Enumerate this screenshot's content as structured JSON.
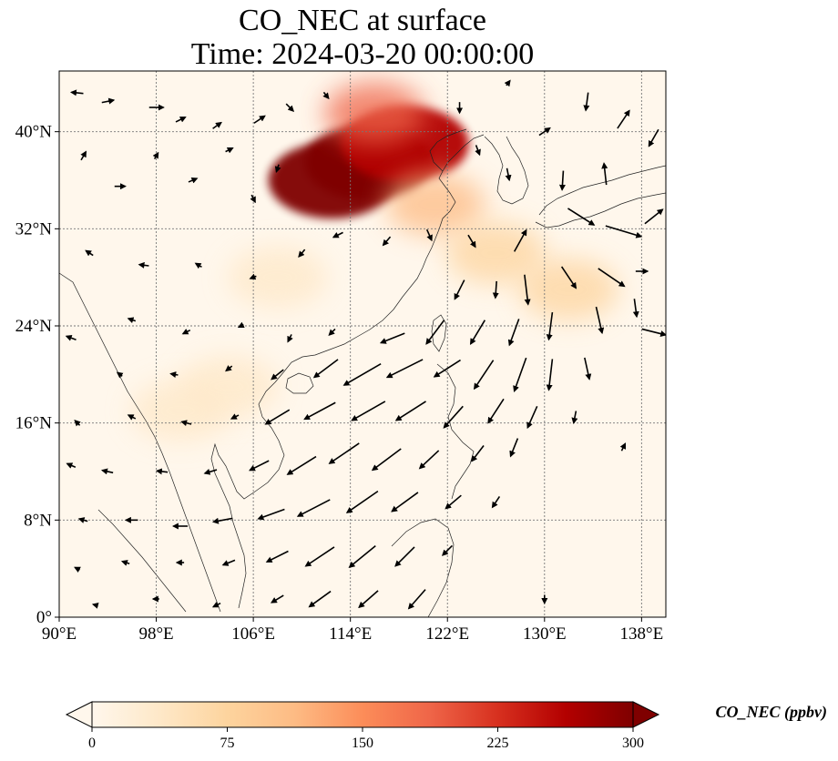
{
  "title": {
    "line1": "CO_NEC at surface",
    "line2": "Time: 2024-03-20 00:00:00"
  },
  "map": {
    "projection": "PlateCarree",
    "lon_range": [
      90,
      140
    ],
    "lat_range": [
      0,
      45
    ],
    "lon_ticks": [
      {
        "value": 90,
        "label": "90°E"
      },
      {
        "value": 98,
        "label": "98°E"
      },
      {
        "value": 106,
        "label": "106°E"
      },
      {
        "value": 114,
        "label": "114°E"
      },
      {
        "value": 122,
        "label": "122°E"
      },
      {
        "value": 130,
        "label": "130°E"
      },
      {
        "value": 138,
        "label": "138°E"
      }
    ],
    "lat_ticks": [
      {
        "value": 0,
        "label": "0°"
      },
      {
        "value": 8,
        "label": "8°N"
      },
      {
        "value": 16,
        "label": "16°N"
      },
      {
        "value": 24,
        "label": "24°N"
      },
      {
        "value": 32,
        "label": "32°N"
      },
      {
        "value": 40,
        "label": "40°N"
      }
    ],
    "gridlines": true,
    "field": "CO_NEC",
    "background_value": 12,
    "plumes": [
      {
        "lon": 115.5,
        "lat": 37.5,
        "value": 300,
        "note": "North China Plain"
      },
      {
        "lon": 112.5,
        "lat": 36.0,
        "value": 290
      },
      {
        "lon": 118.5,
        "lat": 39.0,
        "value": 280
      },
      {
        "lon": 116.0,
        "lat": 41.5,
        "value": 200
      },
      {
        "lon": 121.0,
        "lat": 34.0,
        "value": 110
      },
      {
        "lon": 126.0,
        "lat": 30.0,
        "value": 90
      },
      {
        "lon": 132.0,
        "lat": 27.0,
        "value": 80
      },
      {
        "lon": 104.0,
        "lat": 19.0,
        "value": 55
      },
      {
        "lon": 100.0,
        "lat": 17.0,
        "value": 50
      },
      {
        "lon": 108.0,
        "lat": 28.0,
        "value": 35
      }
    ]
  },
  "colorbar": {
    "label": "CO_NEC (ppbv)",
    "vmin": 0,
    "vmax": 300,
    "ticks": [
      {
        "value": 0,
        "label": "0"
      },
      {
        "value": 75,
        "label": "75"
      },
      {
        "value": 150,
        "label": "150"
      },
      {
        "value": 225,
        "label": "225"
      },
      {
        "value": 300,
        "label": "300"
      }
    ],
    "extend": "both",
    "colormap": "OrRd",
    "colors": [
      "#fff7ec",
      "#fee8c8",
      "#fdd49e",
      "#fdbb84",
      "#fc8d59",
      "#ef6548",
      "#d7301f",
      "#b30000",
      "#7f0000"
    ]
  },
  "wind_vectors": [
    {
      "lon": 91.5,
      "lat": 43.2,
      "u": -1.0,
      "v": 0.1
    },
    {
      "lon": 94.0,
      "lat": 42.5,
      "u": 1.0,
      "v": 0.2
    },
    {
      "lon": 98.0,
      "lat": 42.0,
      "u": 1.2,
      "v": 0.0
    },
    {
      "lon": 100.0,
      "lat": 41.0,
      "u": 0.8,
      "v": 0.4
    },
    {
      "lon": 103.0,
      "lat": 40.5,
      "u": 0.7,
      "v": 0.5
    },
    {
      "lon": 106.5,
      "lat": 41.0,
      "u": 0.9,
      "v": 0.6
    },
    {
      "lon": 109.0,
      "lat": 42.0,
      "u": 0.6,
      "v": -0.6
    },
    {
      "lon": 112.0,
      "lat": 43.0,
      "u": 0.4,
      "v": -0.5
    },
    {
      "lon": 92.0,
      "lat": 38.0,
      "u": 0.4,
      "v": 0.7
    },
    {
      "lon": 95.0,
      "lat": 35.5,
      "u": 0.9,
      "v": 0.0
    },
    {
      "lon": 98.0,
      "lat": 38.0,
      "u": 0.3,
      "v": 0.5
    },
    {
      "lon": 101.0,
      "lat": 36.0,
      "u": 0.7,
      "v": 0.3
    },
    {
      "lon": 104.0,
      "lat": 38.5,
      "u": 0.6,
      "v": 0.3
    },
    {
      "lon": 106.0,
      "lat": 34.5,
      "u": 0.3,
      "v": -0.6
    },
    {
      "lon": 108.0,
      "lat": 37.0,
      "u": -0.2,
      "v": -0.6
    },
    {
      "lon": 123.0,
      "lat": 42.0,
      "u": 0.0,
      "v": -0.9
    },
    {
      "lon": 127.0,
      "lat": 44.0,
      "u": 0.3,
      "v": 0.4
    },
    {
      "lon": 130.0,
      "lat": 40.0,
      "u": 0.9,
      "v": 0.6
    },
    {
      "lon": 133.5,
      "lat": 42.5,
      "u": -0.2,
      "v": -1.5
    },
    {
      "lon": 136.5,
      "lat": 41.0,
      "u": 1.0,
      "v": 1.5
    },
    {
      "lon": 139.0,
      "lat": 39.5,
      "u": -0.8,
      "v": -1.4
    },
    {
      "lon": 135.0,
      "lat": 36.5,
      "u": -0.2,
      "v": 1.8
    },
    {
      "lon": 131.5,
      "lat": 36.0,
      "u": -0.1,
      "v": -1.6
    },
    {
      "lon": 127.0,
      "lat": 36.5,
      "u": 0.2,
      "v": -1.0
    },
    {
      "lon": 124.5,
      "lat": 38.5,
      "u": 0.3,
      "v": -0.8
    },
    {
      "lon": 133.0,
      "lat": 33.0,
      "u": 2.2,
      "v": -1.4
    },
    {
      "lon": 136.5,
      "lat": 31.8,
      "u": 3.0,
      "v": -0.9
    },
    {
      "lon": 139.0,
      "lat": 33.0,
      "u": 1.5,
      "v": 1.2
    },
    {
      "lon": 128.0,
      "lat": 31.0,
      "u": 1.0,
      "v": 1.8
    },
    {
      "lon": 124.0,
      "lat": 31.0,
      "u": 0.6,
      "v": -1.0
    },
    {
      "lon": 120.5,
      "lat": 31.5,
      "u": 0.4,
      "v": -0.9
    },
    {
      "lon": 117.0,
      "lat": 31.0,
      "u": -0.6,
      "v": -0.7
    },
    {
      "lon": 113.0,
      "lat": 31.5,
      "u": -0.8,
      "v": -0.4
    },
    {
      "lon": 110.0,
      "lat": 30.0,
      "u": -0.5,
      "v": -0.6
    },
    {
      "lon": 106.0,
      "lat": 28.0,
      "u": -0.5,
      "v": -0.2
    },
    {
      "lon": 101.5,
      "lat": 29.0,
      "u": -0.5,
      "v": 0.3
    },
    {
      "lon": 97.0,
      "lat": 29.0,
      "u": -0.8,
      "v": 0.1
    },
    {
      "lon": 92.5,
      "lat": 30.0,
      "u": -0.6,
      "v": 0.4
    },
    {
      "lon": 135.5,
      "lat": 28.0,
      "u": 2.2,
      "v": -1.5
    },
    {
      "lon": 138.0,
      "lat": 28.5,
      "u": 1.0,
      "v": 0.0
    },
    {
      "lon": 132.0,
      "lat": 28.0,
      "u": 1.2,
      "v": -1.8
    },
    {
      "lon": 128.5,
      "lat": 27.0,
      "u": 0.3,
      "v": -2.5
    },
    {
      "lon": 126.0,
      "lat": 27.0,
      "u": -0.1,
      "v": -1.4
    },
    {
      "lon": 123.0,
      "lat": 27.0,
      "u": -0.8,
      "v": -1.6
    },
    {
      "lon": 137.5,
      "lat": 25.5,
      "u": 0.2,
      "v": -1.5
    },
    {
      "lon": 139.0,
      "lat": 23.5,
      "u": 2.0,
      "v": -0.5
    },
    {
      "lon": 134.5,
      "lat": 24.5,
      "u": 0.5,
      "v": -2.2
    },
    {
      "lon": 130.5,
      "lat": 24.0,
      "u": -0.3,
      "v": -2.3
    },
    {
      "lon": 127.5,
      "lat": 23.5,
      "u": -0.8,
      "v": -2.2
    },
    {
      "lon": 124.5,
      "lat": 23.5,
      "u": -1.2,
      "v": -2.0
    },
    {
      "lon": 121.0,
      "lat": 23.5,
      "u": -1.5,
      "v": -2.0
    },
    {
      "lon": 117.5,
      "lat": 23.0,
      "u": -2.0,
      "v": -0.8
    },
    {
      "lon": 112.5,
      "lat": 23.5,
      "u": -0.5,
      "v": -0.5
    },
    {
      "lon": 109.0,
      "lat": 23.0,
      "u": -0.3,
      "v": -0.6
    },
    {
      "lon": 105.0,
      "lat": 24.0,
      "u": -0.4,
      "v": -0.2
    },
    {
      "lon": 100.5,
      "lat": 23.5,
      "u": -0.6,
      "v": -0.3
    },
    {
      "lon": 96.0,
      "lat": 24.5,
      "u": -0.6,
      "v": 0.2
    },
    {
      "lon": 91.0,
      "lat": 23.0,
      "u": -0.8,
      "v": 0.3
    },
    {
      "lon": 133.5,
      "lat": 20.5,
      "u": 0.4,
      "v": -1.8
    },
    {
      "lon": 130.5,
      "lat": 20.0,
      "u": -0.3,
      "v": -2.6
    },
    {
      "lon": 128.0,
      "lat": 20.0,
      "u": -1.0,
      "v": -2.8
    },
    {
      "lon": 125.0,
      "lat": 20.0,
      "u": -1.6,
      "v": -2.4
    },
    {
      "lon": 122.0,
      "lat": 20.5,
      "u": -2.2,
      "v": -1.4
    },
    {
      "lon": 118.5,
      "lat": 20.5,
      "u": -3.0,
      "v": -1.5
    },
    {
      "lon": 115.0,
      "lat": 20.0,
      "u": -3.1,
      "v": -1.8
    },
    {
      "lon": 112.0,
      "lat": 20.5,
      "u": -2.0,
      "v": -1.5
    },
    {
      "lon": 108.0,
      "lat": 20.0,
      "u": -1.0,
      "v": -0.8
    },
    {
      "lon": 104.0,
      "lat": 20.5,
      "u": -0.5,
      "v": -0.4
    },
    {
      "lon": 99.5,
      "lat": 20.0,
      "u": -0.6,
      "v": 0.1
    },
    {
      "lon": 95.0,
      "lat": 20.0,
      "u": -0.4,
      "v": 0.3
    },
    {
      "lon": 132.5,
      "lat": 16.5,
      "u": -0.2,
      "v": -1.0
    },
    {
      "lon": 129.0,
      "lat": 16.5,
      "u": -0.8,
      "v": -1.8
    },
    {
      "lon": 126.0,
      "lat": 17.0,
      "u": -1.3,
      "v": -2.0
    },
    {
      "lon": 122.5,
      "lat": 16.5,
      "u": -1.6,
      "v": -1.8
    },
    {
      "lon": 119.0,
      "lat": 17.0,
      "u": -2.5,
      "v": -1.6
    },
    {
      "lon": 115.5,
      "lat": 17.0,
      "u": -2.8,
      "v": -1.6
    },
    {
      "lon": 111.5,
      "lat": 17.0,
      "u": -2.6,
      "v": -1.4
    },
    {
      "lon": 108.0,
      "lat": 16.5,
      "u": -2.0,
      "v": -1.2
    },
    {
      "lon": 104.5,
      "lat": 16.5,
      "u": -0.6,
      "v": -0.3
    },
    {
      "lon": 100.5,
      "lat": 16.0,
      "u": -0.8,
      "v": 0.2
    },
    {
      "lon": 96.0,
      "lat": 16.5,
      "u": -0.6,
      "v": 0.3
    },
    {
      "lon": 91.5,
      "lat": 16.0,
      "u": -0.4,
      "v": 0.4
    },
    {
      "lon": 136.5,
      "lat": 14.0,
      "u": 0.3,
      "v": 0.6
    },
    {
      "lon": 127.5,
      "lat": 14.0,
      "u": -0.6,
      "v": -1.5
    },
    {
      "lon": 124.5,
      "lat": 13.5,
      "u": -1.0,
      "v": -1.3
    },
    {
      "lon": 120.5,
      "lat": 13.0,
      "u": -1.6,
      "v": -1.5
    },
    {
      "lon": 117.0,
      "lat": 13.0,
      "u": -2.4,
      "v": -1.8
    },
    {
      "lon": 113.5,
      "lat": 13.5,
      "u": -2.5,
      "v": -1.7
    },
    {
      "lon": 110.0,
      "lat": 12.5,
      "u": -2.4,
      "v": -1.5
    },
    {
      "lon": 106.5,
      "lat": 12.5,
      "u": -1.6,
      "v": -0.8
    },
    {
      "lon": 102.5,
      "lat": 12.0,
      "u": -1.0,
      "v": -0.3
    },
    {
      "lon": 98.5,
      "lat": 12.0,
      "u": -0.9,
      "v": 0.1
    },
    {
      "lon": 94.0,
      "lat": 12.0,
      "u": -0.9,
      "v": 0.2
    },
    {
      "lon": 91.0,
      "lat": 12.5,
      "u": -0.7,
      "v": 0.3
    },
    {
      "lon": 126.0,
      "lat": 9.5,
      "u": -0.6,
      "v": -0.9
    },
    {
      "lon": 122.5,
      "lat": 9.5,
      "u": -1.3,
      "v": -1.1
    },
    {
      "lon": 118.5,
      "lat": 9.5,
      "u": -2.2,
      "v": -1.6
    },
    {
      "lon": 115.0,
      "lat": 9.5,
      "u": -2.6,
      "v": -1.8
    },
    {
      "lon": 111.0,
      "lat": 9.0,
      "u": -2.7,
      "v": -1.4
    },
    {
      "lon": 107.5,
      "lat": 8.5,
      "u": -2.2,
      "v": -0.8
    },
    {
      "lon": 103.5,
      "lat": 8.0,
      "u": -1.6,
      "v": -0.3
    },
    {
      "lon": 100.0,
      "lat": 7.5,
      "u": -1.2,
      "v": 0.0
    },
    {
      "lon": 96.0,
      "lat": 8.0,
      "u": -1.0,
      "v": 0.0
    },
    {
      "lon": 92.0,
      "lat": 8.0,
      "u": -0.7,
      "v": 0.2
    },
    {
      "lon": 122.0,
      "lat": 5.5,
      "u": -0.8,
      "v": -0.8
    },
    {
      "lon": 118.5,
      "lat": 5.0,
      "u": -1.6,
      "v": -1.6
    },
    {
      "lon": 115.0,
      "lat": 5.0,
      "u": -2.2,
      "v": -1.8
    },
    {
      "lon": 111.5,
      "lat": 5.0,
      "u": -2.4,
      "v": -1.6
    },
    {
      "lon": 108.0,
      "lat": 5.0,
      "u": -1.8,
      "v": -0.9
    },
    {
      "lon": 104.0,
      "lat": 4.5,
      "u": -1.0,
      "v": -0.4
    },
    {
      "lon": 100.0,
      "lat": 4.5,
      "u": -0.6,
      "v": 0.0
    },
    {
      "lon": 95.5,
      "lat": 4.5,
      "u": -0.6,
      "v": 0.2
    },
    {
      "lon": 91.5,
      "lat": 4.0,
      "u": -0.4,
      "v": 0.2
    },
    {
      "lon": 130.0,
      "lat": 1.5,
      "u": 0.0,
      "v": -0.7
    },
    {
      "lon": 119.5,
      "lat": 1.5,
      "u": -1.4,
      "v": -1.6
    },
    {
      "lon": 115.5,
      "lat": 1.5,
      "u": -1.6,
      "v": -1.4
    },
    {
      "lon": 111.5,
      "lat": 1.5,
      "u": -1.8,
      "v": -1.3
    },
    {
      "lon": 108.0,
      "lat": 1.5,
      "u": -1.0,
      "v": -0.6
    },
    {
      "lon": 103.0,
      "lat": 1.0,
      "u": -0.6,
      "v": -0.3
    },
    {
      "lon": 98.0,
      "lat": 1.5,
      "u": -0.5,
      "v": 0.0
    },
    {
      "lon": 93.0,
      "lat": 1.0,
      "u": -0.4,
      "v": 0.1
    }
  ]
}
